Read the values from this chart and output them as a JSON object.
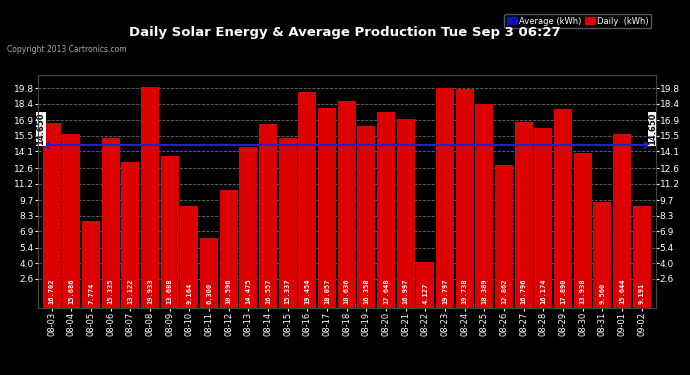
{
  "title": "Daily Solar Energy & Average Production Tue Sep 3 06:27",
  "copyright": "Copyright 2013 Cartronics.com",
  "categories": [
    "08-03",
    "08-04",
    "08-05",
    "08-06",
    "08-07",
    "08-08",
    "08-09",
    "08-10",
    "08-11",
    "08-12",
    "08-13",
    "08-14",
    "08-15",
    "08-16",
    "08-17",
    "08-18",
    "08-19",
    "08-20",
    "08-21",
    "08-22",
    "08-23",
    "08-24",
    "08-25",
    "08-26",
    "08-27",
    "08-28",
    "08-29",
    "08-30",
    "08-31",
    "09-01",
    "09-02"
  ],
  "values": [
    16.702,
    15.686,
    7.774,
    15.335,
    13.122,
    19.933,
    13.688,
    9.164,
    6.3,
    10.596,
    14.475,
    16.557,
    15.337,
    19.454,
    18.057,
    18.636,
    16.358,
    17.648,
    16.997,
    4.127,
    19.797,
    19.738,
    18.389,
    12.862,
    16.796,
    16.174,
    17.89,
    13.938,
    9.56,
    15.644,
    9.191
  ],
  "average": 14.65,
  "bar_color": "#dd0000",
  "avg_line_color": "#2222cc",
  "background_color": "#000000",
  "plot_bg_color": "#000000",
  "grid_color": "#888888",
  "text_color": "#ffffff",
  "yticks": [
    2.6,
    4.0,
    5.4,
    6.9,
    8.3,
    9.7,
    11.2,
    12.6,
    14.1,
    15.5,
    16.9,
    18.4,
    19.8
  ],
  "ylim": [
    0,
    21.0
  ],
  "legend_avg_color": "#1111bb",
  "legend_daily_color": "#dd0000",
  "avg_label": "Average (kWh)",
  "daily_label": "Daily  (kWh)"
}
